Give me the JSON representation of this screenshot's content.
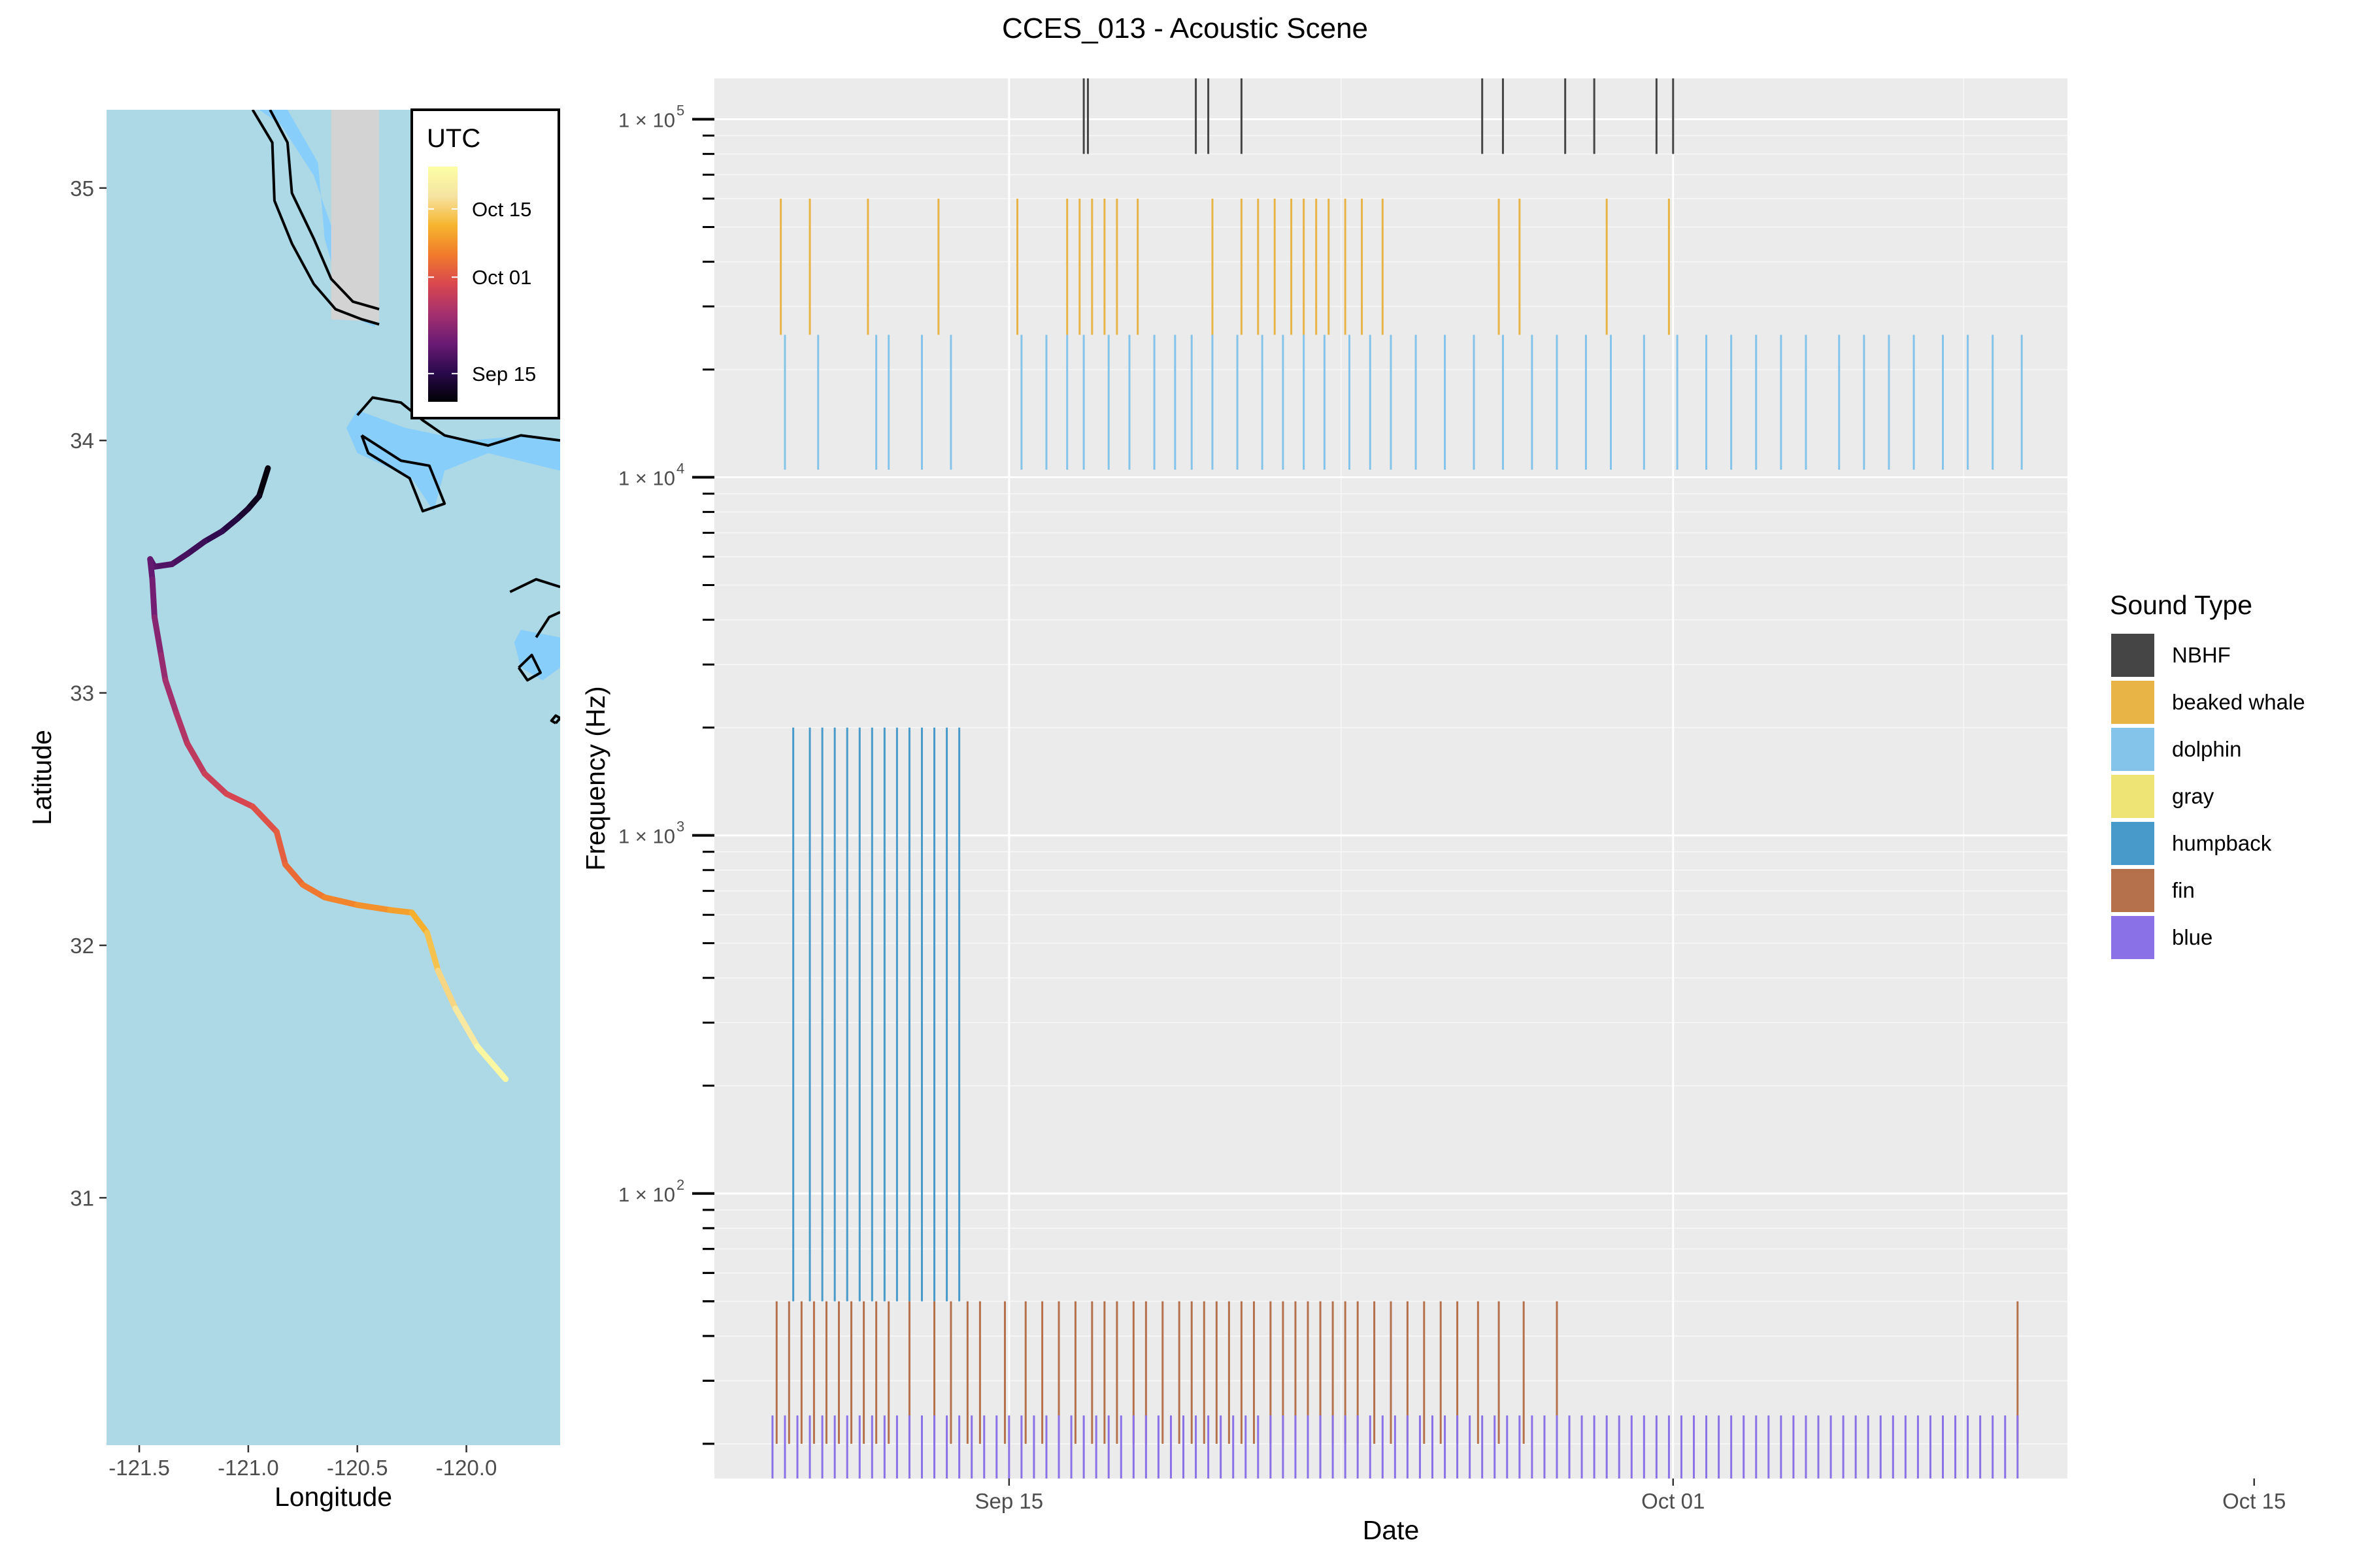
{
  "title": "CCES_013 - Acoustic Scene",
  "map": {
    "xlabel": "Longitude",
    "ylabel": "Latitude",
    "xlim": [
      -121.65,
      -119.57
    ],
    "ylim": [
      30.02,
      35.31
    ],
    "xticks": [
      -121.5,
      -121.0,
      -120.5,
      -120.0
    ],
    "xtick_labels": [
      "-121.5",
      "-121.0",
      "-120.5",
      "-120.0"
    ],
    "yticks": [
      31,
      32,
      33,
      34,
      35
    ],
    "ytick_labels": [
      "31",
      "32",
      "33",
      "34",
      "35"
    ],
    "ocean_color": "#add8e6",
    "land_color": "#d3d3d3",
    "shallow_color": "#87cefa",
    "legend": {
      "title": "UTC",
      "labels": [
        "Oct 15",
        "Oct 01",
        "Sep 15"
      ],
      "positions": [
        0.82,
        0.53,
        0.12
      ]
    },
    "track_colormap": [
      "#000004",
      "#2b0a4d",
      "#6b1b74",
      "#a5306e",
      "#d9474f",
      "#f17b2c",
      "#f6b52e",
      "#f6e3a2",
      "#fcffa4"
    ],
    "track": [
      [
        -120.91,
        33.89
      ],
      [
        -120.95,
        33.78
      ],
      [
        -121.0,
        33.73
      ],
      [
        -121.05,
        33.69
      ],
      [
        -121.12,
        33.64
      ],
      [
        -121.2,
        33.6
      ],
      [
        -121.28,
        33.55
      ],
      [
        -121.35,
        33.51
      ],
      [
        -121.43,
        33.5
      ],
      [
        -121.45,
        33.53
      ],
      [
        -121.44,
        33.45
      ],
      [
        -121.43,
        33.3
      ],
      [
        -121.4,
        33.15
      ],
      [
        -121.38,
        33.05
      ],
      [
        -121.33,
        32.92
      ],
      [
        -121.28,
        32.8
      ],
      [
        -121.2,
        32.68
      ],
      [
        -121.1,
        32.6
      ],
      [
        -120.98,
        32.55
      ],
      [
        -120.87,
        32.45
      ],
      [
        -120.83,
        32.32
      ],
      [
        -120.75,
        32.24
      ],
      [
        -120.65,
        32.19
      ],
      [
        -120.5,
        32.16
      ],
      [
        -120.35,
        32.14
      ],
      [
        -120.25,
        32.13
      ],
      [
        -120.18,
        32.05
      ],
      [
        -120.13,
        31.9
      ],
      [
        -120.05,
        31.75
      ],
      [
        -119.95,
        31.6
      ],
      [
        -119.82,
        31.47
      ]
    ],
    "track_t": [
      0.0,
      0.03,
      0.06,
      0.09,
      0.12,
      0.15,
      0.17,
      0.19,
      0.21,
      0.22,
      0.25,
      0.29,
      0.33,
      0.36,
      0.39,
      0.42,
      0.45,
      0.48,
      0.51,
      0.54,
      0.57,
      0.6,
      0.63,
      0.66,
      0.69,
      0.72,
      0.76,
      0.81,
      0.87,
      0.93,
      1.0
    ],
    "land": [
      [
        [
          -120.82,
          35.31
        ],
        [
          -120.62,
          35.31
        ],
        [
          -120.62,
          34.48
        ],
        [
          -120.4,
          34.47
        ],
        [
          -120.4,
          35.31
        ],
        [
          -120.82,
          35.31
        ]
      ]
    ],
    "shallow": [
      [
        [
          -120.95,
          35.31
        ],
        [
          -120.82,
          35.31
        ],
        [
          -120.68,
          35.1
        ],
        [
          -120.65,
          34.8
        ],
        [
          -120.55,
          34.5
        ],
        [
          -120.42,
          34.45
        ],
        [
          -120.4,
          34.7
        ],
        [
          -120.5,
          34.6
        ],
        [
          -120.62,
          34.85
        ],
        [
          -120.7,
          35.05
        ],
        [
          -120.85,
          35.25
        ]
      ],
      [
        [
          -120.5,
          34.12
        ],
        [
          -120.28,
          34.05
        ],
        [
          -120.0,
          34.0
        ],
        [
          -119.7,
          34.02
        ],
        [
          -119.57,
          34.0
        ],
        [
          -119.57,
          33.88
        ],
        [
          -119.9,
          33.95
        ],
        [
          -120.1,
          33.88
        ],
        [
          -120.15,
          33.72
        ],
        [
          -120.25,
          33.85
        ],
        [
          -120.5,
          33.95
        ],
        [
          -120.55,
          34.05
        ]
      ],
      [
        [
          -119.75,
          33.25
        ],
        [
          -119.57,
          33.22
        ],
        [
          -119.57,
          33.1
        ],
        [
          -119.65,
          33.05
        ],
        [
          -119.75,
          33.1
        ],
        [
          -119.78,
          33.2
        ]
      ]
    ],
    "coast_lines": [
      [
        [
          -120.98,
          35.31
        ],
        [
          -120.89,
          35.18
        ],
        [
          -120.88,
          34.95
        ],
        [
          -120.8,
          34.78
        ],
        [
          -120.7,
          34.62
        ],
        [
          -120.6,
          34.52
        ],
        [
          -120.48,
          34.48
        ],
        [
          -120.4,
          34.46
        ]
      ],
      [
        [
          -120.9,
          35.31
        ],
        [
          -120.82,
          35.18
        ],
        [
          -120.8,
          34.98
        ],
        [
          -120.7,
          34.8
        ],
        [
          -120.62,
          34.64
        ],
        [
          -120.52,
          34.55
        ],
        [
          -120.4,
          34.52
        ]
      ],
      [
        [
          -120.5,
          34.1
        ],
        [
          -120.43,
          34.17
        ],
        [
          -120.3,
          34.15
        ],
        [
          -120.2,
          34.08
        ],
        [
          -120.1,
          34.02
        ],
        [
          -119.9,
          33.98
        ],
        [
          -119.75,
          34.02
        ],
        [
          -119.57,
          34.0
        ]
      ],
      [
        [
          -120.48,
          34.02
        ],
        [
          -120.3,
          33.92
        ],
        [
          -120.17,
          33.9
        ],
        [
          -120.1,
          33.75
        ],
        [
          -120.2,
          33.72
        ],
        [
          -120.26,
          33.85
        ],
        [
          -120.45,
          33.95
        ],
        [
          -120.48,
          34.02
        ]
      ],
      [
        [
          -119.8,
          33.4
        ],
        [
          -119.68,
          33.45
        ],
        [
          -119.57,
          33.42
        ]
      ],
      [
        [
          -119.68,
          33.22
        ],
        [
          -119.62,
          33.3
        ],
        [
          -119.57,
          33.32
        ]
      ],
      [
        [
          -119.76,
          33.1
        ],
        [
          -119.7,
          33.15
        ],
        [
          -119.66,
          33.08
        ],
        [
          -119.72,
          33.05
        ],
        [
          -119.76,
          33.1
        ]
      ],
      [
        [
          -119.59,
          32.88
        ],
        [
          -119.57,
          32.9
        ],
        [
          -119.59,
          32.91
        ],
        [
          -119.61,
          32.89
        ],
        [
          -119.59,
          32.88
        ]
      ]
    ]
  },
  "chart_data": {
    "type": "bar",
    "title": "CCES_013 - Acoustic Scene",
    "xlabel": "Date",
    "ylabel": "Frequency (Hz)",
    "x_axis": "day of year 2018 (Sep 15 = 258)",
    "xlim": [
      250.9,
      283.5
    ],
    "xticks": [
      258,
      274,
      288
    ],
    "xtick_labels": [
      "Sep 15",
      "Oct 01",
      "Oct 15"
    ],
    "ylim": [
      16,
      130000
    ],
    "yscale": "log",
    "yticks": [
      100,
      1000,
      10000,
      100000
    ],
    "ytick_labels": [
      "1 × 10",
      "1 × 10",
      "1 × 10",
      "1 × 10"
    ],
    "ytick_exponents": [
      "2",
      "3",
      "4",
      "5"
    ],
    "grid": true,
    "legend": {
      "title": "Sound Type",
      "position": "right",
      "entries": [
        {
          "name": "NBHF",
          "color": "#454545"
        },
        {
          "name": "beaked whale",
          "color": "#e8b446"
        },
        {
          "name": "dolphin",
          "color": "#85c4ea"
        },
        {
          "name": "gray",
          "color": "#ede475"
        },
        {
          "name": "humpback",
          "color": "#479ac9"
        },
        {
          "name": "fin",
          "color": "#b5714c"
        },
        {
          "name": "blue",
          "color": "#8b71e7"
        }
      ]
    },
    "series": [
      {
        "name": "NBHF",
        "freq_range": [
          80000,
          160000
        ],
        "days": [
          259.8,
          259.9,
          262.5,
          262.8,
          263.6,
          269.4,
          269.9,
          271.4,
          272.1,
          273.6,
          274.0
        ]
      },
      {
        "name": "beaked whale",
        "freq_range": [
          25000,
          60000
        ],
        "days": [
          252.5,
          253.2,
          254.6,
          256.3,
          258.2,
          259.4,
          259.7,
          260.0,
          260.3,
          260.6,
          261.1,
          262.9,
          263.6,
          264.0,
          264.4,
          264.8,
          265.1,
          265.4,
          265.7,
          266.1,
          266.5,
          267.0,
          269.8,
          270.3,
          272.4,
          273.9
        ]
      },
      {
        "name": "dolphin",
        "freq_range": [
          10500,
          25000
        ],
        "days": [
          252.6,
          253.4,
          254.8,
          255.1,
          255.9,
          256.6,
          258.3,
          258.9,
          259.4,
          259.8,
          260.4,
          260.9,
          261.5,
          262.0,
          262.4,
          262.9,
          263.5,
          264.1,
          264.6,
          265.1,
          265.6,
          266.2,
          266.7,
          267.2,
          267.8,
          268.5,
          269.2,
          269.9,
          270.6,
          271.2,
          271.9,
          272.5,
          273.3,
          274.1,
          274.8,
          275.4,
          276.0,
          276.6,
          277.2,
          278.0,
          278.6,
          279.2,
          279.8,
          280.5,
          281.1,
          281.7,
          282.4
        ]
      },
      {
        "name": "humpback",
        "freq_range": [
          50,
          2000
        ],
        "days": [
          252.8,
          253.2,
          253.5,
          253.8,
          254.1,
          254.4,
          254.7,
          255.0,
          255.3,
          255.6,
          255.9,
          256.2,
          256.5,
          256.8
        ]
      },
      {
        "name": "fin",
        "freq_range": [
          20,
          50
        ],
        "days": [
          252.4,
          252.7,
          253.0,
          253.3,
          253.6,
          253.9,
          254.2,
          254.5,
          254.8,
          255.1,
          255.6,
          256.2,
          256.6,
          257.0,
          257.3,
          257.9,
          258.4,
          258.8,
          259.2,
          259.6,
          260.0,
          260.3,
          260.6,
          261.0,
          261.3,
          261.7,
          262.1,
          262.4,
          262.7,
          263.0,
          263.3,
          263.6,
          263.9,
          264.3,
          264.6,
          264.9,
          265.2,
          265.5,
          265.8,
          266.1,
          266.4,
          266.8,
          267.2,
          267.6,
          268.0,
          268.4,
          268.8,
          269.3,
          269.8,
          270.4,
          271.2,
          282.3
        ]
      },
      {
        "name": "blue",
        "freq_range": [
          16,
          24
        ],
        "days": [
          252.3,
          252.6,
          252.9,
          253.2,
          253.5,
          253.8,
          254.1,
          254.4,
          254.7,
          255.0,
          255.3,
          255.6,
          255.9,
          256.2,
          256.5,
          256.8,
          257.1,
          257.4,
          257.7,
          258.0,
          258.3,
          258.6,
          258.9,
          259.2,
          259.5,
          259.8,
          260.1,
          260.4,
          260.7,
          261.0,
          261.3,
          261.6,
          261.9,
          262.2,
          262.5,
          262.8,
          263.1,
          263.4,
          263.7,
          264.0,
          264.3,
          264.6,
          264.9,
          265.2,
          265.5,
          265.8,
          266.1,
          266.4,
          266.7,
          267.0,
          267.3,
          267.6,
          267.9,
          268.2,
          268.5,
          268.8,
          269.1,
          269.4,
          269.7,
          270.0,
          270.3,
          270.6,
          270.9,
          271.2,
          271.5,
          271.8,
          272.1,
          272.4,
          272.7,
          273.0,
          273.3,
          273.6,
          273.9,
          274.2,
          274.5,
          274.8,
          275.1,
          275.4,
          275.7,
          276.0,
          276.3,
          276.6,
          276.9,
          277.2,
          277.5,
          277.8,
          278.1,
          278.4,
          278.7,
          279.0,
          279.3,
          279.6,
          279.9,
          280.2,
          280.5,
          280.8,
          281.1,
          281.4,
          281.7,
          282.0,
          282.3
        ]
      }
    ]
  }
}
